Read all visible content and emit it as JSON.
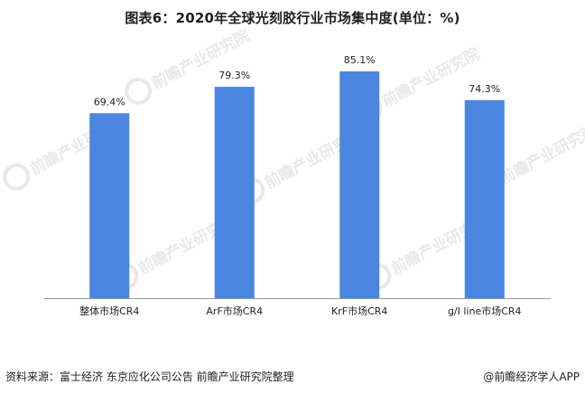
{
  "title": "图表6：2020年全球光刻胶行业市场集中度(单位：%)",
  "source": "资料来源：富士经济 东京应化公司公告 前瞻产业研究院整理",
  "brand": "@前瞻经济学人APP",
  "watermark": "前瞻产业研究院",
  "colors": {
    "bar": "#4a86e0",
    "axis": "#999999",
    "watermark": "#e9e9e9"
  },
  "chart_data": {
    "type": "bar",
    "title": "图表6：2020年全球光刻胶行业市场集中度(单位：%)",
    "categories": [
      "整体市场CR4",
      "ArF市场CR4",
      "KrF市场CR4",
      "g/I line市场CR4"
    ],
    "values": [
      69.4,
      79.3,
      85.1,
      74.3
    ],
    "value_labels": [
      "69.4%",
      "79.3%",
      "85.1%",
      "74.3%"
    ],
    "xlabel": "",
    "ylabel": "",
    "ylim": [
      0,
      100
    ],
    "grid": false,
    "legend": "none"
  }
}
